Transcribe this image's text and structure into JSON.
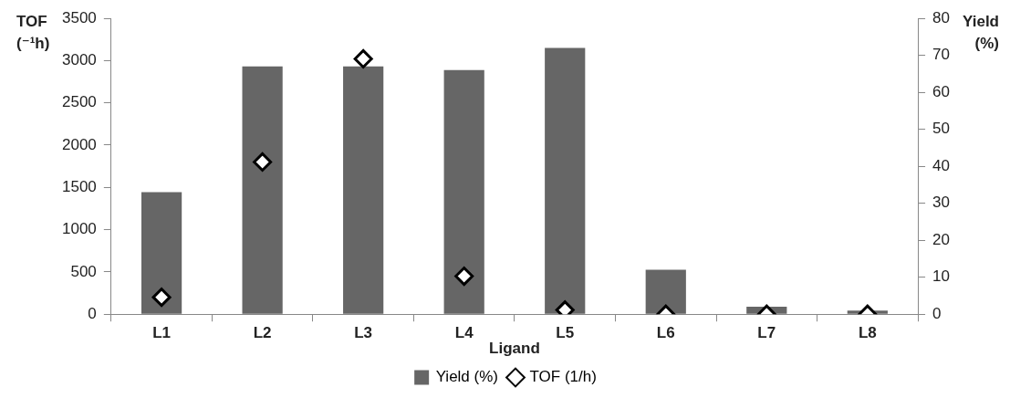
{
  "chart_data": {
    "type": "bar",
    "xlabel": "Ligand",
    "ylabel": "TOF (⁻¹h)",
    "y2label": "Yield (%)",
    "categories": [
      "L1",
      "L2",
      "L3",
      "L4",
      "L5",
      "L6",
      "L7",
      "L8"
    ],
    "series": [
      {
        "name": "Yield (%)",
        "axis": "y2",
        "color": "#666666",
        "values": [
          33,
          67,
          67,
          66,
          72,
          12,
          2,
          1
        ]
      },
      {
        "name": "TOF (1/h)",
        "type": "scatter",
        "axis": "y",
        "color": "#ffffff",
        "marker": "diamond",
        "values": [
          200,
          1800,
          3020,
          450,
          50,
          0,
          0,
          0
        ]
      }
    ],
    "ylim": [
      0,
      3500
    ],
    "yticks": [
      0,
      500,
      1000,
      1500,
      2000,
      2500,
      3000,
      3500
    ],
    "y2lim": [
      0,
      80
    ],
    "y2ticks": [
      0,
      10,
      20,
      30,
      40,
      50,
      60,
      70,
      80
    ],
    "grid": false,
    "legend": "bottom"
  }
}
